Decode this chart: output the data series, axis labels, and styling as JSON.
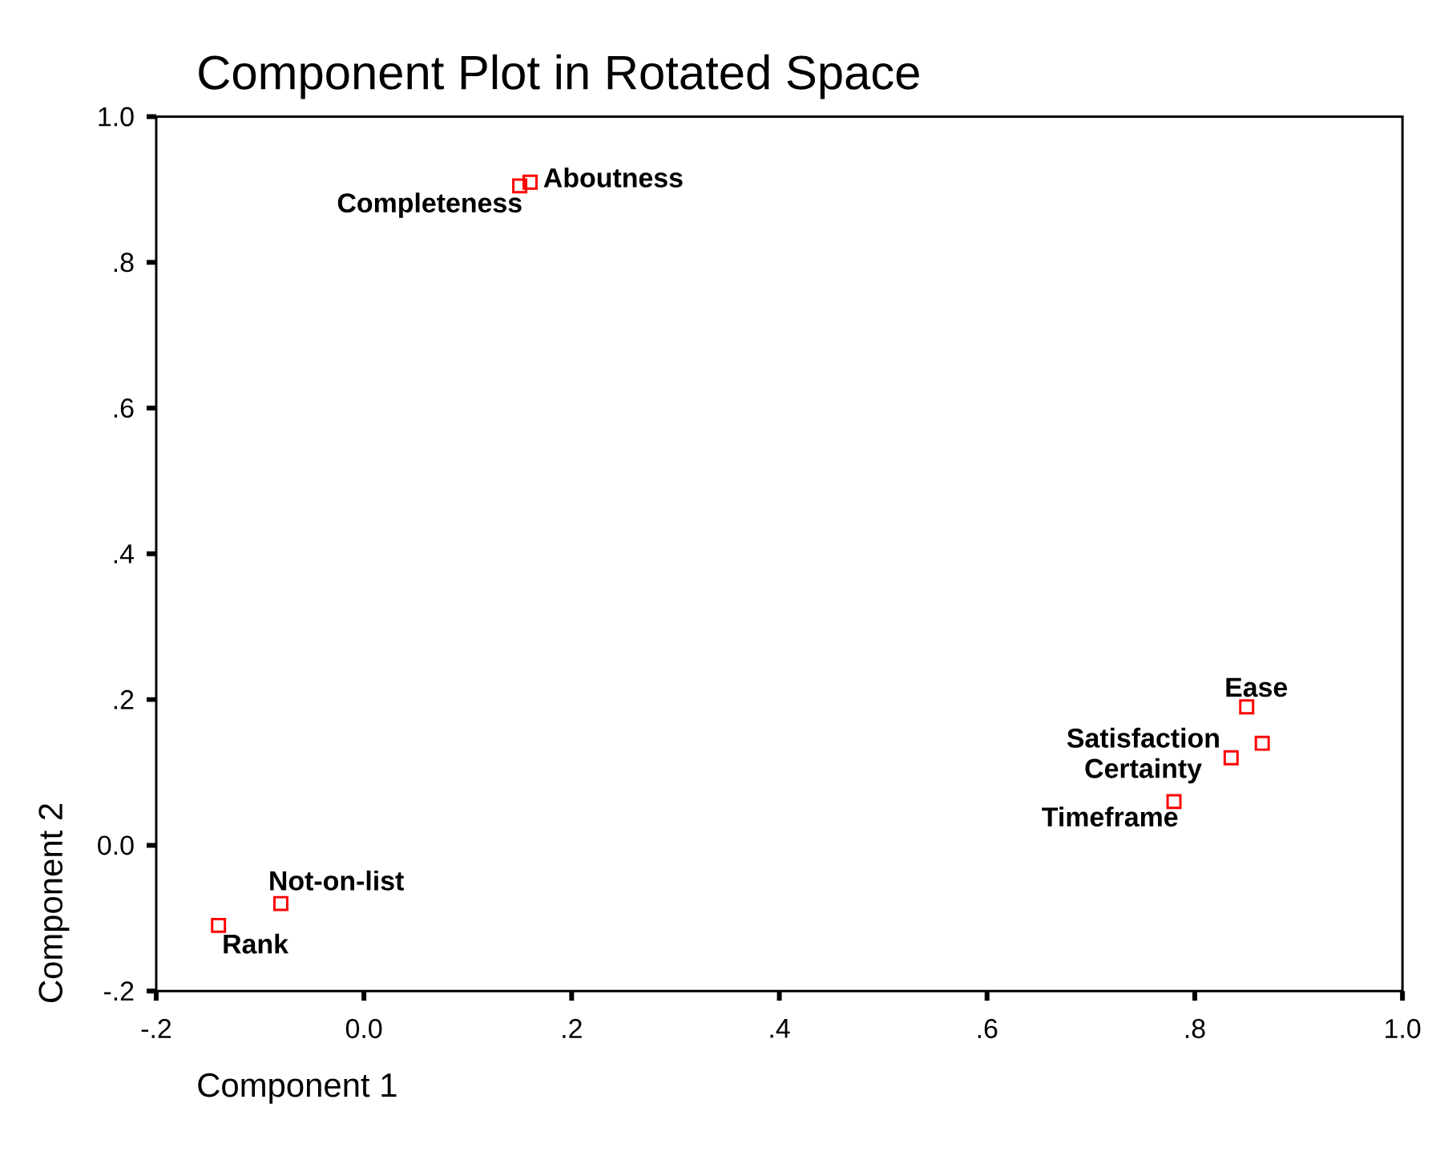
{
  "chart_data": {
    "type": "scatter",
    "title": "Component Plot in Rotated Space",
    "xlabel": "Component 1",
    "ylabel": "Component 2",
    "x": [
      0.16,
      0.15,
      0.85,
      0.865,
      0.835,
      0.78,
      -0.08,
      -0.14
    ],
    "values": [
      0.91,
      0.905,
      0.19,
      0.14,
      0.12,
      0.06,
      -0.08,
      -0.11
    ],
    "color": "#ff0000",
    "marker": "square",
    "grid": false,
    "xlim": [
      -0.2,
      1.0
    ],
    "ylim": [
      -0.2,
      1.0
    ],
    "xticks": [
      {
        "value": -0.2,
        "label": "-.2"
      },
      {
        "value": 0.0,
        "label": "0.0"
      },
      {
        "value": 0.2,
        "label": ".2"
      },
      {
        "value": 0.4,
        "label": ".4"
      },
      {
        "value": 0.6,
        "label": ".6"
      },
      {
        "value": 0.8,
        "label": ".8"
      },
      {
        "value": 1.0,
        "label": "1.0"
      }
    ],
    "yticks": [
      {
        "value": -0.2,
        "label": "-.2"
      },
      {
        "value": 0.0,
        "label": "0.0"
      },
      {
        "value": 0.2,
        "label": ".2"
      },
      {
        "value": 0.4,
        "label": ".4"
      },
      {
        "value": 0.6,
        "label": ".6"
      },
      {
        "value": 0.8,
        "label": ".8"
      },
      {
        "value": 1.0,
        "label": "1.0"
      }
    ],
    "annotations": [
      {
        "text": "Aboutness",
        "x": 0.16,
        "y": 0.91
      },
      {
        "text": "Completeness",
        "x": 0.15,
        "y": 0.905
      },
      {
        "text": "Ease",
        "x": 0.85,
        "y": 0.19
      },
      {
        "text": "Satisfaction",
        "x": 0.865,
        "y": 0.14
      },
      {
        "text": "Certainty",
        "x": 0.835,
        "y": 0.12
      },
      {
        "text": "Timeframe",
        "x": 0.78,
        "y": 0.06
      },
      {
        "text": "Not-on-list",
        "x": -0.08,
        "y": -0.08
      },
      {
        "text": "Rank",
        "x": -0.14,
        "y": -0.11
      }
    ]
  }
}
